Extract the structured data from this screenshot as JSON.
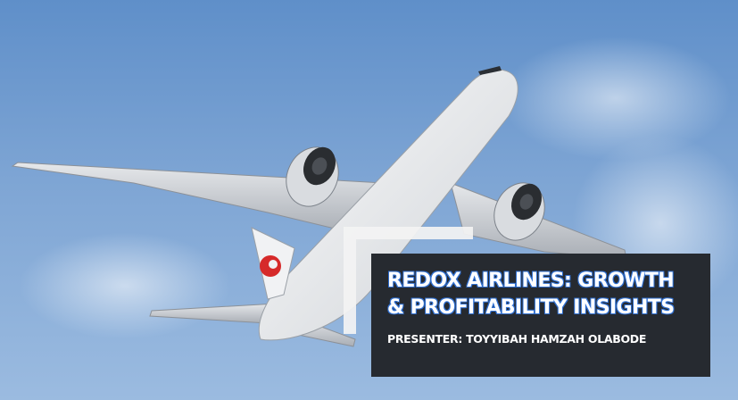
{
  "slide": {
    "title_line1": "REDOX AIRLINES: GROWTH",
    "title_line2": "& PROFITABILITY INSIGHTS",
    "presenter": "PRESENTER: TOYYIBAH HAMZAH OLABODE"
  },
  "colors": {
    "sky": "#7ea5d4",
    "title_box": "#262a30",
    "title_outline": "#2f6fd1",
    "livery_red": "#d62a2a"
  },
  "icons": {
    "airplane": "airplane-photo",
    "tail_logo": "crane-logo-icon"
  }
}
